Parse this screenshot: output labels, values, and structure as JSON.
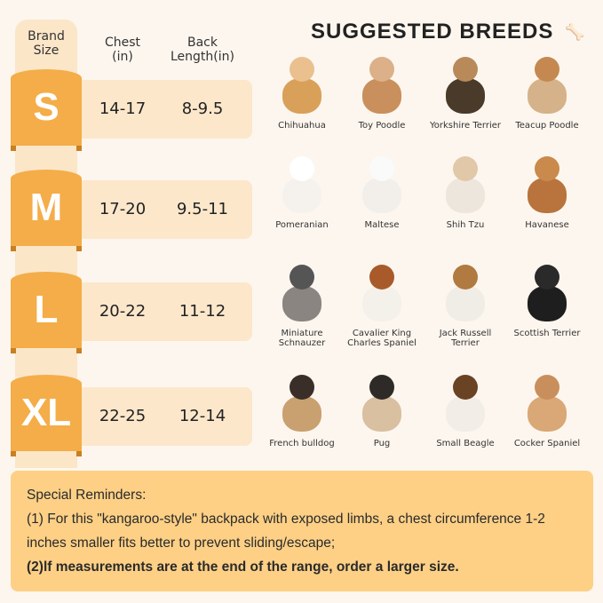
{
  "header": {
    "brand_size": "Brand Size",
    "chest": "Chest (in)",
    "back": "Back Length(in)"
  },
  "sizes": [
    {
      "size": "S",
      "chest": "14-17",
      "back": "8-9.5"
    },
    {
      "size": "M",
      "chest": "17-20",
      "back": "9.5-11"
    },
    {
      "size": "L",
      "chest": "20-22",
      "back": "11-12"
    },
    {
      "size": "XL",
      "chest": "22-25",
      "back": "12-14"
    }
  ],
  "title": "SUGGESTED BREEDS",
  "title_icon": "bone-icon",
  "breeds": [
    [
      "Chihuahua",
      "Toy Poodle",
      "Yorkshire Terrier",
      "Teacup Poodle"
    ],
    [
      "Pomeranian",
      "Maltese",
      "Shih Tzu",
      "Havanese"
    ],
    [
      "Miniature Schnauzer",
      "Cavalier King Charles Spaniel",
      "Jack Russell Terrier",
      "Scottish Terrier"
    ],
    [
      "French bulldog",
      "Pug",
      "Small Beagle",
      "Cocker Spaniel"
    ]
  ],
  "reminders": {
    "heading": "Special Reminders:",
    "line1": "(1) For this \"kangaroo-style\" backpack with exposed limbs, a chest circumference 1-2 inches smaller fits better to prevent sliding/escape;",
    "line2": "(2)lf measurements are at the end of the range, order a larger size."
  },
  "colors": {
    "accent": "#f4ad48",
    "panel": "#fce7cb",
    "background": "#fdf6ee",
    "reminder": "#fdd086"
  }
}
